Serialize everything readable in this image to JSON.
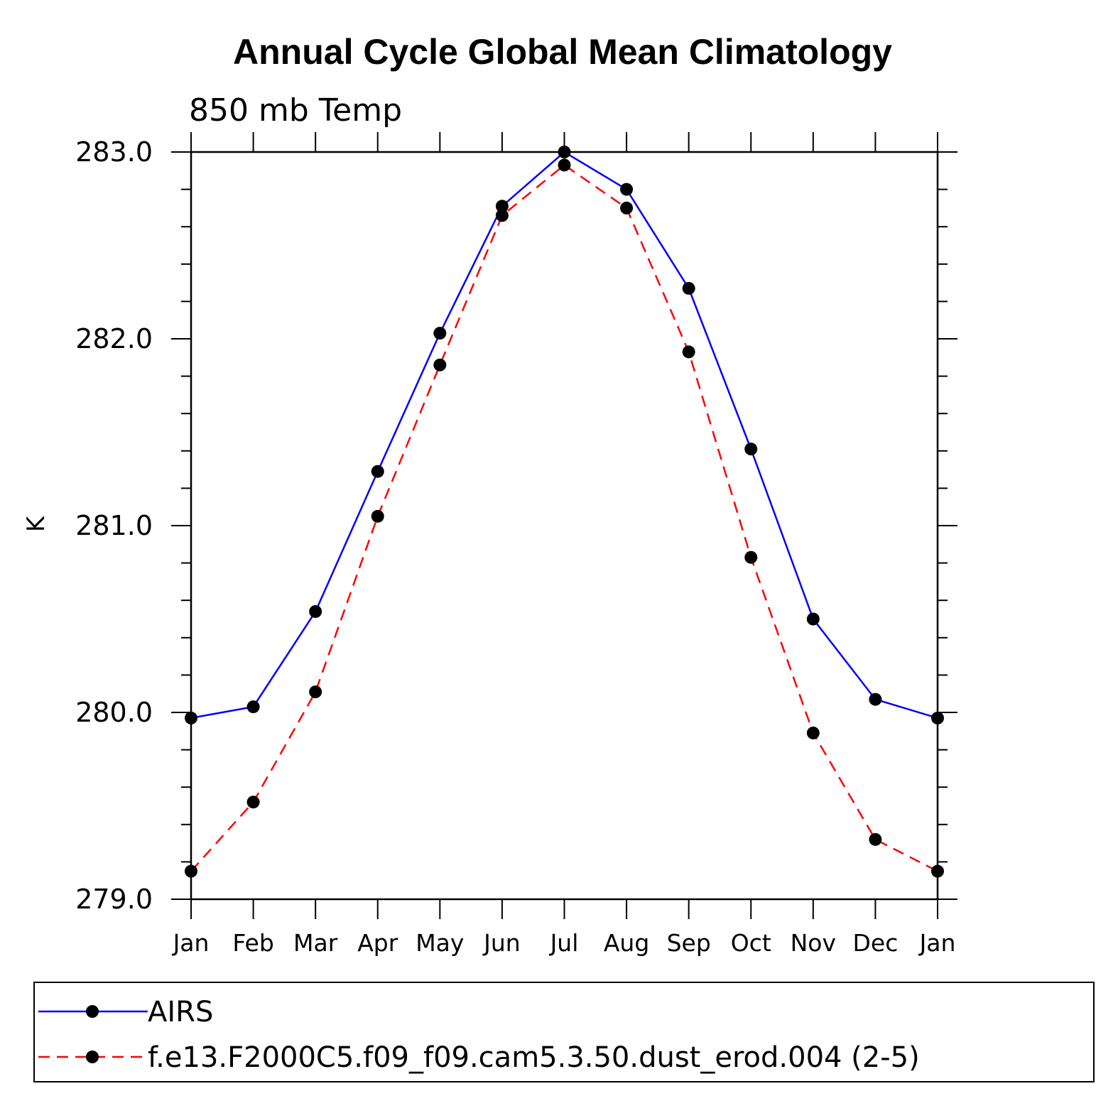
{
  "chart_data": {
    "type": "line",
    "title": "Annual Cycle Global Mean Climatology",
    "subtitle": "850 mb Temp",
    "xlabel": "",
    "ylabel": "K",
    "categories": [
      "Jan",
      "Feb",
      "Mar",
      "Apr",
      "May",
      "Jun",
      "Jul",
      "Aug",
      "Sep",
      "Oct",
      "Nov",
      "Dec",
      "Jan"
    ],
    "ylim": [
      279.0,
      283.0
    ],
    "yticks": [
      279.0,
      280.0,
      281.0,
      282.0,
      283.0
    ],
    "ytick_labels": [
      "279.0",
      "280.0",
      "281.0",
      "282.0",
      "283.0"
    ],
    "grid": false,
    "legend_position": "bottom",
    "series": [
      {
        "name": "AIRS",
        "color": "#0000ff",
        "style": "solid",
        "marker": "circle",
        "values": [
          279.97,
          280.03,
          280.54,
          281.29,
          282.03,
          282.71,
          283.0,
          282.8,
          282.27,
          281.41,
          280.5,
          280.07,
          279.97
        ]
      },
      {
        "name": "f.e13.F2000C5.f09_f09.cam5.3.50.dust_erod.004 (2-5)",
        "color": "#ff0000",
        "style": "dashed",
        "marker": "circle",
        "values": [
          279.15,
          279.52,
          280.11,
          281.05,
          281.86,
          282.66,
          282.93,
          282.7,
          281.93,
          280.83,
          279.89,
          279.32,
          279.15
        ]
      }
    ]
  }
}
